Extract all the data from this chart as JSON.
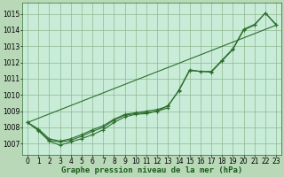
{
  "background_color": "#b8d8b8",
  "plot_bg_color": "#c8ecd8",
  "grid_color": "#90b890",
  "line_color": "#2d6e2d",
  "xlabel": "Graphe pression niveau de la mer (hPa)",
  "xlim": [
    -0.5,
    23.5
  ],
  "ylim": [
    1006.3,
    1015.7
  ],
  "yticks": [
    1007,
    1008,
    1009,
    1010,
    1011,
    1012,
    1013,
    1014,
    1015
  ],
  "xticks": [
    0,
    1,
    2,
    3,
    4,
    5,
    6,
    7,
    8,
    9,
    10,
    11,
    12,
    13,
    14,
    15,
    16,
    17,
    18,
    19,
    20,
    21,
    22,
    23
  ],
  "series1_x": [
    0,
    1,
    2,
    3,
    4,
    5,
    6,
    7,
    8,
    9,
    10,
    11,
    12,
    13,
    14,
    15,
    16,
    17,
    18,
    19,
    20,
    21,
    22,
    23
  ],
  "series1_y": [
    1008.3,
    1007.8,
    1007.15,
    1006.9,
    1007.1,
    1007.3,
    1007.55,
    1007.85,
    1008.3,
    1008.65,
    1008.8,
    1008.85,
    1009.0,
    1009.35,
    1010.25,
    1011.5,
    1011.45,
    1011.4,
    1012.1,
    1012.8,
    1014.0,
    1014.3,
    1015.05,
    1014.3
  ],
  "series2_x": [
    0,
    1,
    2,
    3,
    4,
    5,
    6,
    7,
    8,
    9,
    10,
    11,
    12,
    13
  ],
  "series2_y": [
    1008.3,
    1007.85,
    1007.2,
    1007.1,
    1007.2,
    1007.45,
    1007.75,
    1008.0,
    1008.45,
    1008.75,
    1008.85,
    1008.9,
    1009.0,
    1009.2
  ],
  "series3_x": [
    0,
    23
  ],
  "series3_y": [
    1008.3,
    1014.3
  ],
  "series4_x": [
    0,
    1,
    2,
    3,
    4,
    5,
    6,
    7,
    8,
    9,
    10,
    11,
    12,
    13,
    14,
    15,
    16,
    17,
    18,
    19,
    20,
    21,
    22,
    23
  ],
  "series4_y": [
    1008.3,
    1007.9,
    1007.3,
    1007.15,
    1007.3,
    1007.55,
    1007.85,
    1008.1,
    1008.5,
    1008.8,
    1008.9,
    1009.0,
    1009.1,
    1009.3,
    1010.3,
    1011.55,
    1011.45,
    1011.45,
    1012.15,
    1012.85,
    1014.05,
    1014.35,
    1015.05,
    1014.35
  ],
  "xlabel_fontsize": 6.5,
  "tick_fontsize": 5.5
}
